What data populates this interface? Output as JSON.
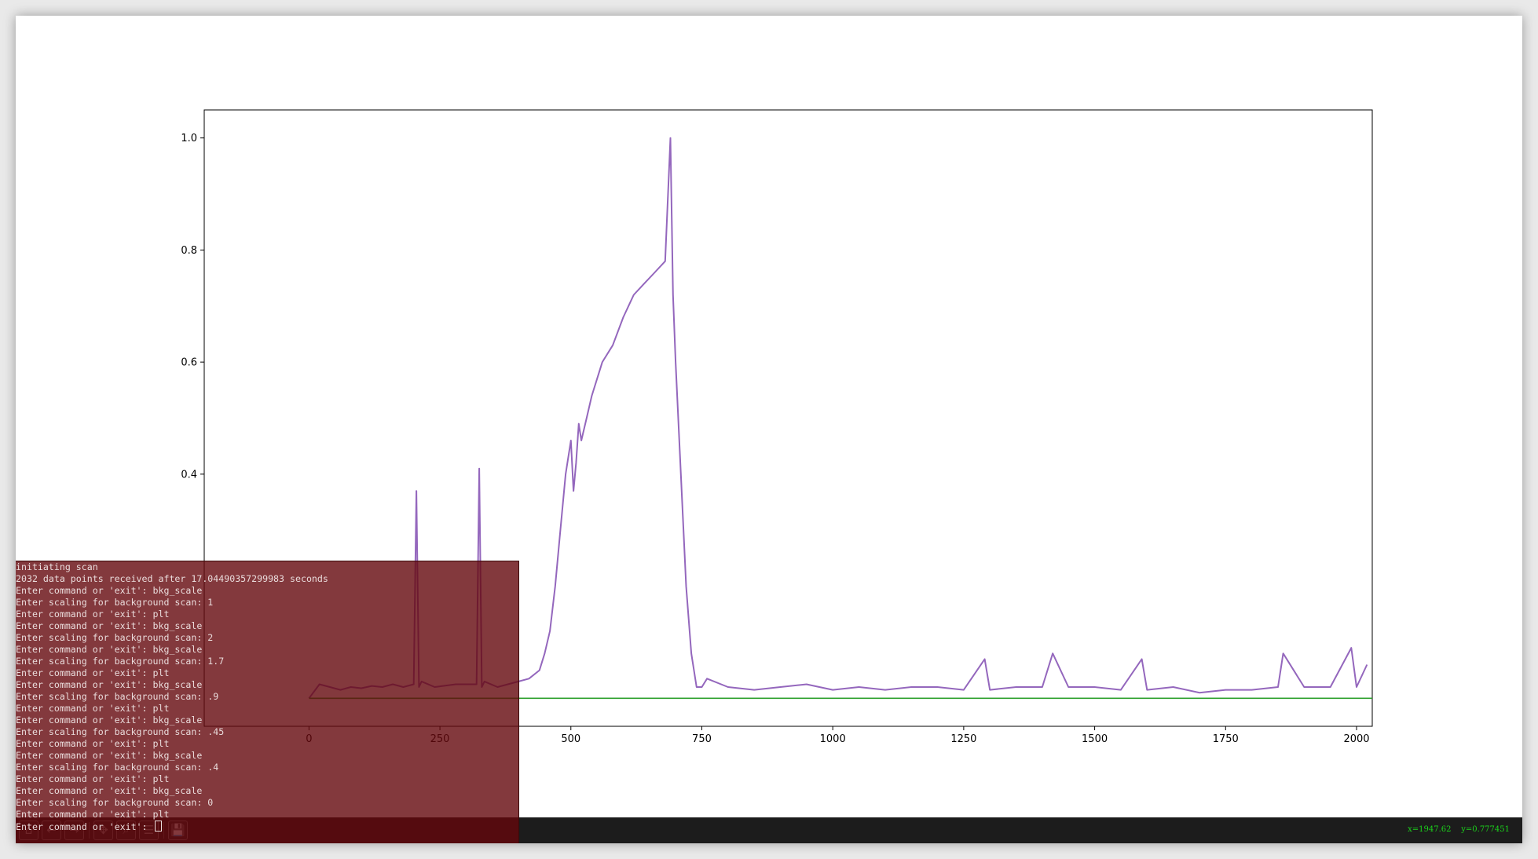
{
  "figure": {
    "toolbar": {
      "buttons": [
        {
          "name": "home-icon",
          "glyph": "⌂"
        },
        {
          "name": "back-icon",
          "glyph": "←"
        },
        {
          "name": "forward-icon",
          "glyph": "→"
        },
        {
          "name": "pan-icon",
          "glyph": "✥"
        },
        {
          "name": "zoom-icon",
          "glyph": "⌕"
        },
        {
          "name": "subplots-icon",
          "glyph": "☰"
        },
        {
          "name": "save-icon",
          "glyph": "💾"
        }
      ],
      "coords_x": "x=1947.62",
      "coords_y": "y=0.777451"
    }
  },
  "terminal": {
    "lines": [
      "initiating scan",
      "2032 data points received after 17.04490357299983 seconds",
      "Enter command or 'exit': bkg_scale",
      "Enter scaling for background scan: 1",
      "Enter command or 'exit': plt",
      "Enter command or 'exit': bkg_scale",
      "Enter scaling for background scan: 2",
      "Enter command or 'exit': bkg_scale",
      "Enter scaling for background scan: 1.7",
      "Enter command or 'exit': plt",
      "Enter command or 'exit': bkg_scale",
      "Enter scaling for background scan: .9",
      "Enter command or 'exit': plt",
      "Enter command or 'exit': bkg_scale",
      "Enter scaling for background scan: .45",
      "Enter command or 'exit': plt",
      "Enter command or 'exit': bkg_scale",
      "Enter scaling for background scan: .4",
      "Enter command or 'exit': plt",
      "Enter command or 'exit': bkg_scale",
      "Enter scaling for background scan: 0",
      "Enter command or 'exit': plt"
    ],
    "prompt": "Enter command or 'exit': "
  },
  "chart_data": {
    "type": "line",
    "title": "",
    "xlabel": "",
    "ylabel": "",
    "xlim": [
      -200,
      2030
    ],
    "ylim": [
      -0.05,
      1.05
    ],
    "xticks": [
      0,
      250,
      500,
      750,
      1000,
      1250,
      1500,
      1750,
      2000
    ],
    "yticks": [
      0.4,
      0.6,
      0.8,
      1.0
    ],
    "xtick_labels": [
      "0",
      "250",
      "500",
      "750",
      "1000",
      "1250",
      "1500",
      "1750",
      "2000"
    ],
    "ytick_labels": [
      "0.4",
      "0.6",
      "0.8",
      "1.0"
    ],
    "grid": false,
    "colors": {
      "signal": "#9467bd",
      "baseline": "#2ca02c"
    },
    "series": [
      {
        "x": [
          0,
          20,
          40,
          60,
          80,
          100,
          120,
          140,
          160,
          180,
          200,
          205,
          210,
          215,
          240,
          280,
          320,
          325,
          330,
          335,
          360,
          400,
          420,
          440,
          450,
          460,
          470,
          480,
          490,
          500,
          505,
          510,
          515,
          520,
          530,
          540,
          560,
          580,
          600,
          620,
          640,
          660,
          680,
          690,
          695,
          700,
          710,
          720,
          730,
          740,
          750,
          760,
          800,
          850,
          900,
          950,
          1000,
          1050,
          1100,
          1150,
          1200,
          1250,
          1290,
          1300,
          1350,
          1400,
          1420,
          1450,
          1500,
          1550,
          1590,
          1600,
          1650,
          1700,
          1750,
          1800,
          1850,
          1860,
          1900,
          1950,
          1990,
          2000,
          2020
        ],
        "values": [
          0.0,
          0.025,
          0.02,
          0.015,
          0.02,
          0.018,
          0.022,
          0.02,
          0.025,
          0.02,
          0.025,
          0.37,
          0.02,
          0.03,
          0.02,
          0.025,
          0.025,
          0.41,
          0.02,
          0.03,
          0.02,
          0.03,
          0.035,
          0.05,
          0.08,
          0.12,
          0.2,
          0.3,
          0.4,
          0.46,
          0.37,
          0.42,
          0.49,
          0.46,
          0.5,
          0.54,
          0.6,
          0.63,
          0.68,
          0.72,
          0.74,
          0.76,
          0.78,
          1.0,
          0.72,
          0.6,
          0.4,
          0.2,
          0.08,
          0.02,
          0.02,
          0.035,
          0.02,
          0.015,
          0.02,
          0.025,
          0.015,
          0.02,
          0.015,
          0.02,
          0.02,
          0.015,
          0.07,
          0.015,
          0.02,
          0.02,
          0.08,
          0.02,
          0.02,
          0.015,
          0.07,
          0.015,
          0.02,
          0.01,
          0.015,
          0.015,
          0.02,
          0.08,
          0.02,
          0.02,
          0.09,
          0.02,
          0.06
        ]
      },
      {
        "x": [
          0,
          2030
        ],
        "values": [
          0,
          0
        ]
      }
    ]
  }
}
